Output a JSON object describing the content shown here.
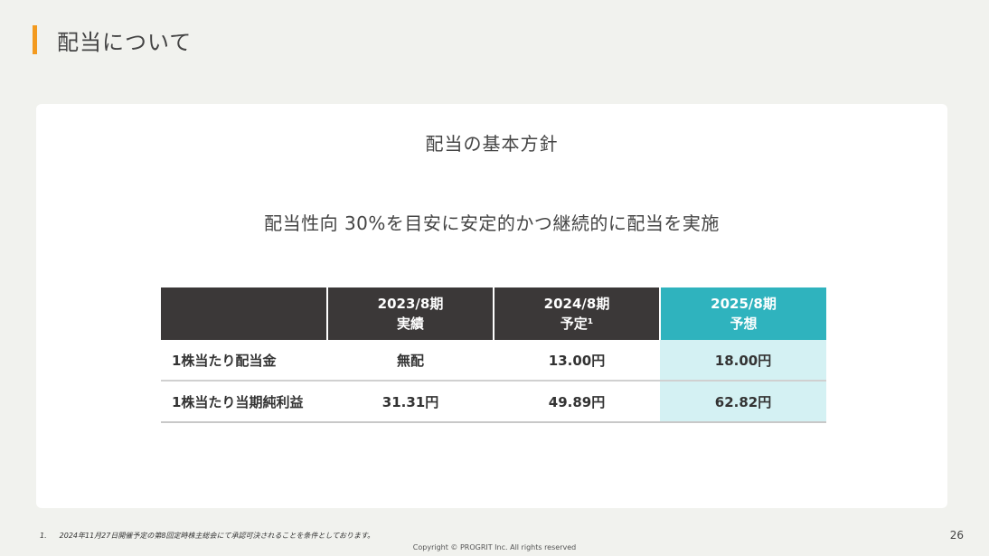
{
  "page": {
    "title": "配当について",
    "accent_color": "#f39a1e",
    "page_number": "26",
    "copyright": "Copyright © PROGRIT Inc. All rights reserved",
    "footnote": {
      "number": "1.",
      "text": "2024年11月27日開催予定の第8回定時株主総会にて承認可決されることを条件としております。"
    }
  },
  "card": {
    "heading": "配当の基本方針",
    "policy": "配当性向 30%を目安に安定的かつ継続的に配当を実施"
  },
  "table": {
    "highlight_color": "#2fb3be",
    "columns": [
      {
        "line1": "",
        "line2": ""
      },
      {
        "line1": "2023/8期",
        "line2": "実績"
      },
      {
        "line1": "2024/8期",
        "line2": "予定¹"
      },
      {
        "line1": "2025/8期",
        "line2": "予想"
      }
    ],
    "rows": [
      {
        "label": "1株当たり配当金",
        "values": [
          "無配",
          "13.00円",
          "18.00円"
        ]
      },
      {
        "label": "1株当たり当期純利益",
        "values": [
          "31.31円",
          "49.89円",
          "62.82円"
        ]
      }
    ]
  }
}
